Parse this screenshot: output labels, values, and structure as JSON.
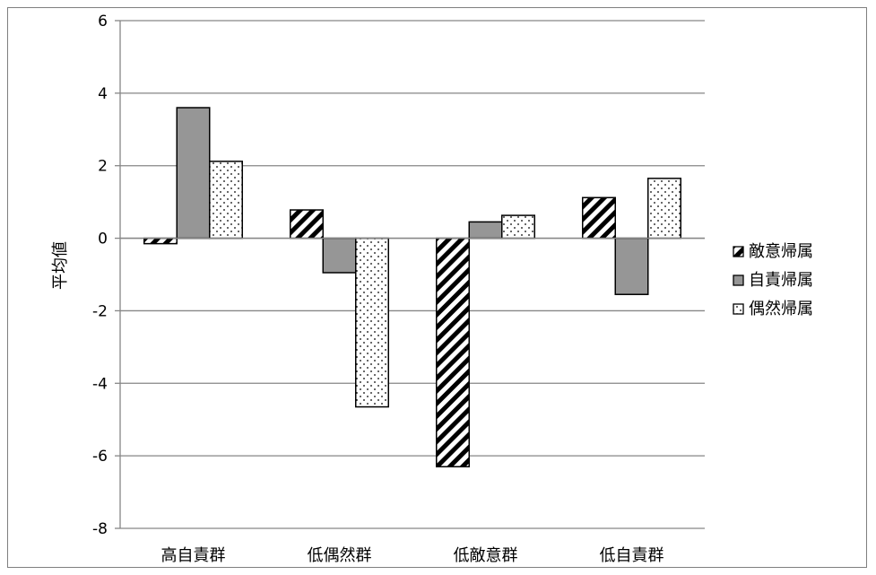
{
  "chart_data": {
    "type": "bar",
    "title": "",
    "xlabel": "",
    "ylabel": "平均値",
    "ylim": [
      -8,
      6
    ],
    "ytick_step": 2,
    "grid": true,
    "legend_position": "right",
    "categories": [
      "高自責群",
      "低偶然群",
      "低敵意群",
      "低自責群"
    ],
    "series": [
      {
        "name": "敵意帰属",
        "pattern": "diagonal-hatch",
        "color": "#000000",
        "values": [
          -0.15,
          0.78,
          -6.3,
          1.12
        ]
      },
      {
        "name": "自責帰属",
        "pattern": "solid",
        "color": "#969696",
        "values": [
          3.6,
          -0.95,
          0.45,
          -1.55
        ]
      },
      {
        "name": "偶然帰属",
        "pattern": "dots",
        "color": "#ffffff",
        "values": [
          2.12,
          -4.65,
          0.63,
          1.65
        ]
      }
    ]
  }
}
